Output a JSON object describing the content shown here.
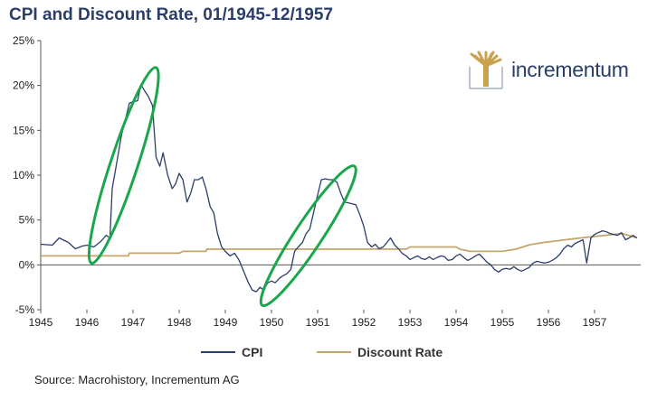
{
  "title": "CPI and Discount Rate, 01/1945-12/1957",
  "source": "Source: Macrohistory, Incrementum AG",
  "logo": {
    "text": "incrementum",
    "colors": {
      "text": "#2b3e6b",
      "tree": "#c9a24e",
      "line": "#7a8aa8"
    }
  },
  "colors": {
    "cpi": "#2b3e6b",
    "discount_rate": "#c4a56a",
    "ellipse": "#1aa64a",
    "axis": "#555555"
  },
  "chart_data": {
    "type": "line",
    "title": "CPI and Discount Rate, 01/1945-12/1957",
    "xlim": [
      1945.0,
      1958.0
    ],
    "ylim": [
      -5,
      25
    ],
    "x_ticks": [
      "1945",
      "1946",
      "1947",
      "1948",
      "1949",
      "1950",
      "1951",
      "1952",
      "1953",
      "1954",
      "1955",
      "1956",
      "1957"
    ],
    "y_ticks": [
      "25%",
      "20%",
      "15%",
      "10%",
      "5%",
      "0%",
      "-5%"
    ],
    "grid": false,
    "legend_position": "bottom",
    "series": [
      {
        "name": "CPI",
        "points": [
          [
            1945.0,
            2.3
          ],
          [
            1945.25,
            2.2
          ],
          [
            1945.4,
            3.0
          ],
          [
            1945.6,
            2.5
          ],
          [
            1945.75,
            1.8
          ],
          [
            1945.9,
            2.1
          ],
          [
            1946.0,
            2.2
          ],
          [
            1946.15,
            2.0
          ],
          [
            1946.3,
            2.6
          ],
          [
            1946.42,
            3.3
          ],
          [
            1946.5,
            3.0
          ],
          [
            1946.55,
            8.5
          ],
          [
            1946.65,
            11.5
          ],
          [
            1946.75,
            14.5
          ],
          [
            1946.85,
            16.5
          ],
          [
            1946.92,
            18.0
          ],
          [
            1947.0,
            18.2
          ],
          [
            1947.1,
            18.3
          ],
          [
            1947.17,
            20.1
          ],
          [
            1947.25,
            19.4
          ],
          [
            1947.33,
            18.8
          ],
          [
            1947.42,
            17.8
          ],
          [
            1947.5,
            12.0
          ],
          [
            1947.58,
            11.0
          ],
          [
            1947.65,
            12.5
          ],
          [
            1947.75,
            10.0
          ],
          [
            1947.85,
            8.5
          ],
          [
            1947.92,
            9.0
          ],
          [
            1948.0,
            10.2
          ],
          [
            1948.08,
            9.5
          ],
          [
            1948.17,
            7.0
          ],
          [
            1948.25,
            8.0
          ],
          [
            1948.33,
            9.5
          ],
          [
            1948.42,
            9.5
          ],
          [
            1948.5,
            9.8
          ],
          [
            1948.58,
            8.5
          ],
          [
            1948.67,
            6.5
          ],
          [
            1948.75,
            5.8
          ],
          [
            1948.83,
            3.5
          ],
          [
            1948.92,
            2.0
          ],
          [
            1949.0,
            1.5
          ],
          [
            1949.1,
            1.0
          ],
          [
            1949.2,
            1.3
          ],
          [
            1949.3,
            0.5
          ],
          [
            1949.42,
            -1.0
          ],
          [
            1949.5,
            -2.0
          ],
          [
            1949.58,
            -2.8
          ],
          [
            1949.67,
            -3.0
          ],
          [
            1949.75,
            -2.5
          ],
          [
            1949.83,
            -2.8
          ],
          [
            1949.92,
            -2.0
          ],
          [
            1950.0,
            -1.8
          ],
          [
            1950.08,
            -2.0
          ],
          [
            1950.17,
            -1.5
          ],
          [
            1950.25,
            -1.2
          ],
          [
            1950.33,
            -1.0
          ],
          [
            1950.42,
            -0.5
          ],
          [
            1950.5,
            1.5
          ],
          [
            1950.58,
            2.0
          ],
          [
            1950.67,
            2.5
          ],
          [
            1950.75,
            3.5
          ],
          [
            1950.83,
            4.0
          ],
          [
            1950.92,
            6.0
          ],
          [
            1951.0,
            7.8
          ],
          [
            1951.08,
            9.5
          ],
          [
            1951.17,
            9.6
          ],
          [
            1951.25,
            9.5
          ],
          [
            1951.33,
            9.5
          ],
          [
            1951.42,
            9.2
          ],
          [
            1951.5,
            8.0
          ],
          [
            1951.58,
            7.0
          ],
          [
            1951.67,
            6.9
          ],
          [
            1951.75,
            6.8
          ],
          [
            1951.83,
            6.7
          ],
          [
            1951.92,
            5.5
          ],
          [
            1952.0,
            4.3
          ],
          [
            1952.08,
            2.5
          ],
          [
            1952.17,
            2.0
          ],
          [
            1952.25,
            2.3
          ],
          [
            1952.33,
            1.8
          ],
          [
            1952.42,
            2.0
          ],
          [
            1952.5,
            2.5
          ],
          [
            1952.58,
            3.0
          ],
          [
            1952.67,
            2.2
          ],
          [
            1952.75,
            1.8
          ],
          [
            1952.83,
            1.3
          ],
          [
            1952.92,
            1.0
          ],
          [
            1953.0,
            0.6
          ],
          [
            1953.08,
            0.8
          ],
          [
            1953.17,
            1.0
          ],
          [
            1953.25,
            0.7
          ],
          [
            1953.33,
            0.6
          ],
          [
            1953.42,
            0.9
          ],
          [
            1953.5,
            0.6
          ],
          [
            1953.58,
            0.8
          ],
          [
            1953.67,
            1.0
          ],
          [
            1953.75,
            0.9
          ],
          [
            1953.83,
            0.5
          ],
          [
            1953.92,
            0.6
          ],
          [
            1954.0,
            1.0
          ],
          [
            1954.08,
            1.2
          ],
          [
            1954.17,
            0.8
          ],
          [
            1954.25,
            0.5
          ],
          [
            1954.33,
            0.7
          ],
          [
            1954.42,
            1.0
          ],
          [
            1954.5,
            1.2
          ],
          [
            1954.58,
            0.8
          ],
          [
            1954.67,
            0.3
          ],
          [
            1954.75,
            0.0
          ],
          [
            1954.83,
            -0.5
          ],
          [
            1954.92,
            -0.8
          ],
          [
            1955.0,
            -0.5
          ],
          [
            1955.08,
            -0.4
          ],
          [
            1955.17,
            -0.5
          ],
          [
            1955.25,
            -0.2
          ],
          [
            1955.33,
            -0.5
          ],
          [
            1955.42,
            -0.7
          ],
          [
            1955.5,
            -0.5
          ],
          [
            1955.58,
            -0.3
          ],
          [
            1955.67,
            0.2
          ],
          [
            1955.75,
            0.4
          ],
          [
            1955.83,
            0.3
          ],
          [
            1955.92,
            0.2
          ],
          [
            1956.0,
            0.3
          ],
          [
            1956.08,
            0.5
          ],
          [
            1956.17,
            0.8
          ],
          [
            1956.25,
            1.2
          ],
          [
            1956.33,
            1.8
          ],
          [
            1956.42,
            2.2
          ],
          [
            1956.5,
            2.0
          ],
          [
            1956.58,
            2.4
          ],
          [
            1956.67,
            2.6
          ],
          [
            1956.75,
            2.8
          ],
          [
            1956.83,
            0.2
          ],
          [
            1956.92,
            3.0
          ],
          [
            1957.0,
            3.4
          ],
          [
            1957.08,
            3.6
          ],
          [
            1957.17,
            3.8
          ],
          [
            1957.25,
            3.7
          ],
          [
            1957.33,
            3.5
          ],
          [
            1957.42,
            3.4
          ],
          [
            1957.5,
            3.3
          ],
          [
            1957.58,
            3.6
          ],
          [
            1957.67,
            2.8
          ],
          [
            1957.75,
            3.0
          ],
          [
            1957.83,
            3.3
          ],
          [
            1957.92,
            3.0
          ]
        ]
      },
      {
        "name": "Discount Rate",
        "points": [
          [
            1945.0,
            1.0
          ],
          [
            1946.0,
            1.0
          ],
          [
            1946.9,
            1.0
          ],
          [
            1946.92,
            1.3
          ],
          [
            1947.5,
            1.3
          ],
          [
            1948.0,
            1.3
          ],
          [
            1948.08,
            1.5
          ],
          [
            1948.58,
            1.5
          ],
          [
            1948.6,
            1.75
          ],
          [
            1950.0,
            1.75
          ],
          [
            1951.0,
            1.75
          ],
          [
            1952.0,
            1.75
          ],
          [
            1952.92,
            1.75
          ],
          [
            1953.0,
            2.0
          ],
          [
            1954.0,
            2.0
          ],
          [
            1954.08,
            1.75
          ],
          [
            1954.3,
            1.5
          ],
          [
            1955.0,
            1.5
          ],
          [
            1955.3,
            1.75
          ],
          [
            1955.6,
            2.25
          ],
          [
            1955.9,
            2.5
          ],
          [
            1956.3,
            2.75
          ],
          [
            1956.7,
            3.0
          ],
          [
            1957.6,
            3.5
          ],
          [
            1957.92,
            3.0
          ]
        ]
      }
    ],
    "annotations": [
      {
        "shape": "ellipse",
        "x_range": [
          1946.1,
          1947.5
        ],
        "y_range": [
          0.2,
          22.0
        ]
      },
      {
        "shape": "ellipse",
        "x_range": [
          1949.8,
          1951.8
        ],
        "y_range": [
          -4.5,
          11.0
        ]
      }
    ]
  }
}
